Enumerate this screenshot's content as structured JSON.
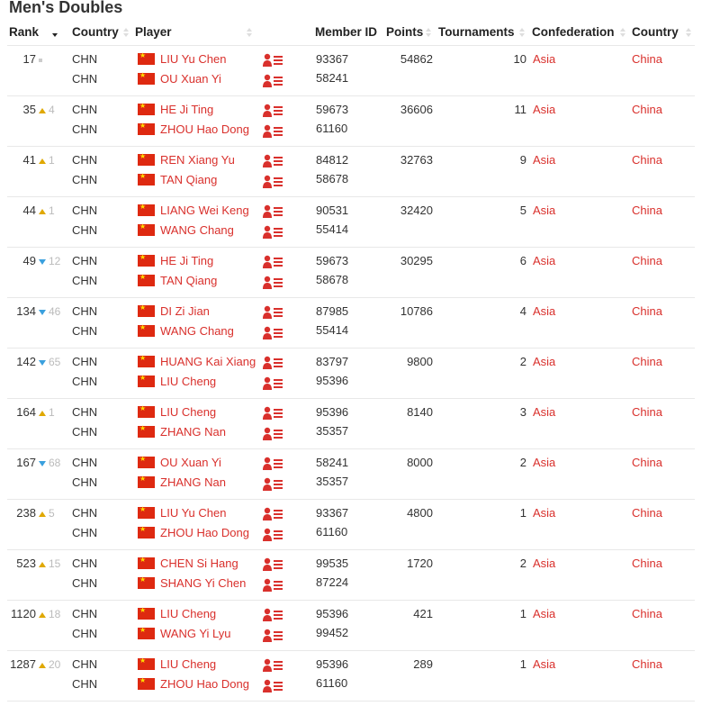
{
  "title": "Men's Doubles",
  "headers": {
    "rank": "Rank",
    "country": "Country",
    "player": "Player",
    "member_id": "Member ID",
    "points": "Points",
    "tournaments": "Tournaments",
    "confederation": "Confederation",
    "country2": "Country"
  },
  "colors": {
    "link": "#d9302c",
    "up": "#e0a800",
    "down": "#3aa0de"
  },
  "rows": [
    {
      "rank": "17",
      "dir": "same",
      "change": "",
      "c1": "CHN",
      "c2": "CHN",
      "p1": "LIU Yu Chen",
      "p2": "OU Xuan Yi",
      "id1": "93367",
      "id2": "58241",
      "points": "54862",
      "tournaments": "10",
      "confederation": "Asia",
      "country": "China"
    },
    {
      "rank": "35",
      "dir": "up",
      "change": "4",
      "c1": "CHN",
      "c2": "CHN",
      "p1": "HE Ji Ting",
      "p2": "ZHOU Hao Dong",
      "id1": "59673",
      "id2": "61160",
      "points": "36606",
      "tournaments": "11",
      "confederation": "Asia",
      "country": "China"
    },
    {
      "rank": "41",
      "dir": "up",
      "change": "1",
      "c1": "CHN",
      "c2": "CHN",
      "p1": "REN Xiang Yu",
      "p2": "TAN Qiang",
      "id1": "84812",
      "id2": "58678",
      "points": "32763",
      "tournaments": "9",
      "confederation": "Asia",
      "country": "China"
    },
    {
      "rank": "44",
      "dir": "up",
      "change": "1",
      "c1": "CHN",
      "c2": "CHN",
      "p1": "LIANG Wei Keng",
      "p2": "WANG Chang",
      "id1": "90531",
      "id2": "55414",
      "points": "32420",
      "tournaments": "5",
      "confederation": "Asia",
      "country": "China"
    },
    {
      "rank": "49",
      "dir": "down",
      "change": "12",
      "c1": "CHN",
      "c2": "CHN",
      "p1": "HE Ji Ting",
      "p2": "TAN Qiang",
      "id1": "59673",
      "id2": "58678",
      "points": "30295",
      "tournaments": "6",
      "confederation": "Asia",
      "country": "China"
    },
    {
      "rank": "134",
      "dir": "down",
      "change": "46",
      "c1": "CHN",
      "c2": "CHN",
      "p1": "DI Zi Jian",
      "p2": "WANG Chang",
      "id1": "87985",
      "id2": "55414",
      "points": "10786",
      "tournaments": "4",
      "confederation": "Asia",
      "country": "China"
    },
    {
      "rank": "142",
      "dir": "down",
      "change": "65",
      "c1": "CHN",
      "c2": "CHN",
      "p1": "HUANG Kai Xiang",
      "p2": "LIU Cheng",
      "id1": "83797",
      "id2": "95396",
      "points": "9800",
      "tournaments": "2",
      "confederation": "Asia",
      "country": "China"
    },
    {
      "rank": "164",
      "dir": "up",
      "change": "1",
      "c1": "CHN",
      "c2": "CHN",
      "p1": "LIU Cheng",
      "p2": "ZHANG Nan",
      "id1": "95396",
      "id2": "35357",
      "points": "8140",
      "tournaments": "3",
      "confederation": "Asia",
      "country": "China"
    },
    {
      "rank": "167",
      "dir": "down",
      "change": "68",
      "c1": "CHN",
      "c2": "CHN",
      "p1": "OU Xuan Yi",
      "p2": "ZHANG Nan",
      "id1": "58241",
      "id2": "35357",
      "points": "8000",
      "tournaments": "2",
      "confederation": "Asia",
      "country": "China"
    },
    {
      "rank": "238",
      "dir": "up",
      "change": "5",
      "c1": "CHN",
      "c2": "CHN",
      "p1": "LIU Yu Chen",
      "p2": "ZHOU Hao Dong",
      "id1": "93367",
      "id2": "61160",
      "points": "4800",
      "tournaments": "1",
      "confederation": "Asia",
      "country": "China"
    },
    {
      "rank": "523",
      "dir": "up",
      "change": "15",
      "c1": "CHN",
      "c2": "CHN",
      "p1": "CHEN Si Hang",
      "p2": "SHANG Yi Chen",
      "id1": "99535",
      "id2": "87224",
      "points": "1720",
      "tournaments": "2",
      "confederation": "Asia",
      "country": "China"
    },
    {
      "rank": "1120",
      "dir": "up",
      "change": "18",
      "c1": "CHN",
      "c2": "CHN",
      "p1": "LIU Cheng",
      "p2": "WANG Yi Lyu",
      "id1": "95396",
      "id2": "99452",
      "points": "421",
      "tournaments": "1",
      "confederation": "Asia",
      "country": "China"
    },
    {
      "rank": "1287",
      "dir": "up",
      "change": "20",
      "c1": "CHN",
      "c2": "CHN",
      "p1": "LIU Cheng",
      "p2": "ZHOU Hao Dong",
      "id1": "95396",
      "id2": "61160",
      "points": "289",
      "tournaments": "1",
      "confederation": "Asia",
      "country": "China"
    }
  ]
}
